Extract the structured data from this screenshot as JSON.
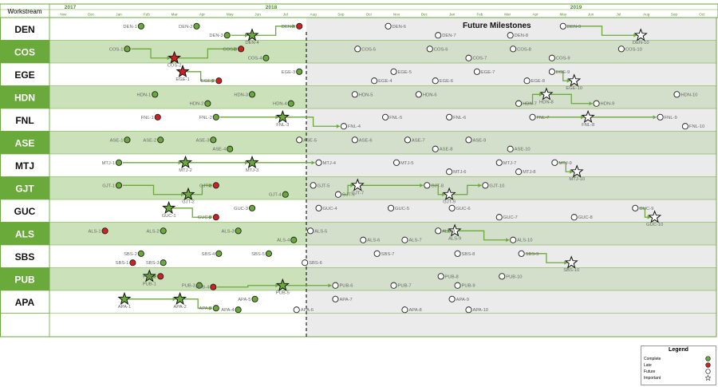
{
  "header": {
    "workstream_label": "Workstream",
    "year_labels": [
      "2017",
      "2018",
      "2019"
    ]
  },
  "months": [
    "Nov",
    "Dec",
    "Jan",
    "Feb",
    "Mar",
    "Apr",
    "May",
    "Jun",
    "Jul",
    "Aug",
    "Sep",
    "Oct",
    "Nov",
    "Dec",
    "Jan",
    "Feb",
    "Mar",
    "Apr",
    "May",
    "Jun",
    "Jul",
    "Aug",
    "Sep",
    "Oct"
  ],
  "future_title": "Future Milestones",
  "workstreams": [
    "DEN",
    "COS",
    "EGE",
    "HDN",
    "FNL",
    "ASE",
    "MTJ",
    "GJT",
    "GUC",
    "ALS",
    "SBS",
    "PUB",
    "APA"
  ],
  "legend": {
    "title": "Legend",
    "items": [
      "Complete",
      "Late",
      "Future",
      "Important"
    ]
  },
  "colors": {
    "accent_green": "#6aaa3a",
    "dark_green": "#4e8a2a",
    "row_header": "#6aaa3a",
    "complete": "#6aaa3a",
    "late": "#cc2222",
    "future": "#ffffff",
    "header_line": "#6aaa3a"
  },
  "milestones": [
    {
      "ws": "DEN",
      "label": "DEN-1",
      "month": 3.3,
      "status": "complete",
      "sub": 0
    },
    {
      "ws": "DEN",
      "label": "DEN-2",
      "month": 5.3,
      "status": "complete",
      "sub": 0
    },
    {
      "ws": "DEN",
      "label": "DEN-3",
      "month": 6.4,
      "status": "complete",
      "sub": 1
    },
    {
      "ws": "DEN",
      "label": "DEN-4",
      "month": 7.3,
      "status": "important_done",
      "sub": 1
    },
    {
      "ws": "DEN",
      "label": "DEN-5",
      "month": 9.0,
      "status": "late",
      "sub": 0
    },
    {
      "ws": "DEN",
      "label": "DEN-6",
      "month": 12.2,
      "status": "future",
      "sub": 0
    },
    {
      "ws": "DEN",
      "label": "DEN-7",
      "month": 14.0,
      "status": "future",
      "sub": 1
    },
    {
      "ws": "DEN",
      "label": "DEN-8",
      "month": 16.6,
      "status": "future",
      "sub": 1
    },
    {
      "ws": "DEN",
      "label": "DEN-9",
      "month": 18.5,
      "status": "future",
      "sub": 0
    },
    {
      "ws": "DEN",
      "label": "DEN-10",
      "month": 21.3,
      "status": "important",
      "sub": 1
    },
    {
      "ws": "COS",
      "label": "COS-1",
      "month": 2.8,
      "status": "complete",
      "sub": 0
    },
    {
      "ws": "COS",
      "label": "COS-2",
      "month": 4.5,
      "status": "important_late",
      "sub": 1
    },
    {
      "ws": "COS",
      "label": "COS-3",
      "month": 6.9,
      "status": "late",
      "sub": 0
    },
    {
      "ws": "COS",
      "label": "COS-4",
      "month": 7.8,
      "status": "complete",
      "sub": 1
    },
    {
      "ws": "COS",
      "label": "COS-5",
      "month": 11.1,
      "status": "future",
      "sub": 0
    },
    {
      "ws": "COS",
      "label": "COS-6",
      "month": 13.7,
      "status": "future",
      "sub": 0
    },
    {
      "ws": "COS",
      "label": "COS-7",
      "month": 15.1,
      "status": "future",
      "sub": 1
    },
    {
      "ws": "COS",
      "label": "COS-8",
      "month": 16.7,
      "status": "future",
      "sub": 0
    },
    {
      "ws": "COS",
      "label": "COS-9",
      "month": 18.1,
      "status": "future",
      "sub": 1
    },
    {
      "ws": "COS",
      "label": "COS-10",
      "month": 20.6,
      "status": "future",
      "sub": 0
    },
    {
      "ws": "EGE",
      "label": "EGE-1",
      "month": 4.8,
      "status": "important_late",
      "sub": 0
    },
    {
      "ws": "EGE",
      "label": "EGE-2",
      "month": 6.1,
      "status": "late",
      "sub": 1
    },
    {
      "ws": "EGE",
      "label": "EGE-3",
      "month": 9.0,
      "status": "complete",
      "sub": 0
    },
    {
      "ws": "EGE",
      "label": "EGE-4",
      "month": 11.7,
      "status": "future",
      "sub": 1
    },
    {
      "ws": "EGE",
      "label": "EGE-5",
      "month": 12.4,
      "status": "future",
      "sub": 0
    },
    {
      "ws": "EGE",
      "label": "EGE-6",
      "month": 13.9,
      "status": "future",
      "sub": 1
    },
    {
      "ws": "EGE",
      "label": "EGE-7",
      "month": 15.4,
      "status": "future",
      "sub": 0
    },
    {
      "ws": "EGE",
      "label": "EGE-8",
      "month": 17.2,
      "status": "future",
      "sub": 1
    },
    {
      "ws": "EGE",
      "label": "EGE-9",
      "month": 18.1,
      "status": "future",
      "sub": 0
    },
    {
      "ws": "EGE",
      "label": "EGE-10",
      "month": 18.9,
      "status": "important",
      "sub": 1
    },
    {
      "ws": "HDN",
      "label": "HDN-1",
      "month": 3.8,
      "status": "complete",
      "sub": 0
    },
    {
      "ws": "HDN",
      "label": "HDN-2",
      "month": 5.7,
      "status": "complete",
      "sub": 1
    },
    {
      "ws": "HDN",
      "label": "HDN-3",
      "month": 7.3,
      "status": "complete",
      "sub": 0
    },
    {
      "ws": "HDN",
      "label": "HDN-4",
      "month": 8.7,
      "status": "complete",
      "sub": 1
    },
    {
      "ws": "HDN",
      "label": "HDN-5",
      "month": 11.0,
      "status": "future",
      "sub": 0
    },
    {
      "ws": "HDN",
      "label": "HDN-6",
      "month": 13.3,
      "status": "future",
      "sub": 0
    },
    {
      "ws": "HDN",
      "label": "HDN-7",
      "month": 16.9,
      "status": "future",
      "sub": 1
    },
    {
      "ws": "HDN",
      "label": "HDN-8",
      "month": 17.9,
      "status": "important",
      "sub": 0
    },
    {
      "ws": "HDN",
      "label": "HDN-9",
      "month": 19.7,
      "status": "future",
      "sub": 1
    },
    {
      "ws": "HDN",
      "label": "HDN-10",
      "month": 22.6,
      "status": "future",
      "sub": 0
    },
    {
      "ws": "FNL",
      "label": "FNL-1",
      "month": 3.9,
      "status": "late",
      "sub": 0
    },
    {
      "ws": "FNL",
      "label": "FNL-2",
      "month": 6.0,
      "status": "complete",
      "sub": 0
    },
    {
      "ws": "FNL",
      "label": "FNL-3",
      "month": 8.4,
      "status": "important_done",
      "sub": 0
    },
    {
      "ws": "FNL",
      "label": "FNL-4",
      "month": 10.6,
      "status": "future",
      "sub": 1
    },
    {
      "ws": "FNL",
      "label": "FNL-5",
      "month": 12.1,
      "status": "future",
      "sub": 0
    },
    {
      "ws": "FNL",
      "label": "FNL-6",
      "month": 14.4,
      "status": "future",
      "sub": 0
    },
    {
      "ws": "FNL",
      "label": "FNL-7",
      "month": 17.4,
      "status": "future",
      "sub": 0
    },
    {
      "ws": "FNL",
      "label": "FNL-8",
      "month": 19.4,
      "status": "important",
      "sub": 0
    },
    {
      "ws": "FNL",
      "label": "FNL-9",
      "month": 22.0,
      "status": "future",
      "sub": 0
    },
    {
      "ws": "FNL",
      "label": "FNL-10",
      "month": 22.9,
      "status": "future",
      "sub": 1
    },
    {
      "ws": "ASE",
      "label": "ASE-1",
      "month": 2.8,
      "status": "complete",
      "sub": 0
    },
    {
      "ws": "ASE",
      "label": "ASE-2",
      "month": 4.0,
      "status": "complete",
      "sub": 0
    },
    {
      "ws": "ASE",
      "label": "ASE-3",
      "month": 5.9,
      "status": "complete",
      "sub": 0
    },
    {
      "ws": "ASE",
      "label": "ASE-4",
      "month": 6.5,
      "status": "complete",
      "sub": 1
    },
    {
      "ws": "ASE",
      "label": "ASE-5",
      "month": 9.0,
      "status": "future",
      "sub": 0
    },
    {
      "ws": "ASE",
      "label": "ASE-6",
      "month": 11.0,
      "status": "future",
      "sub": 0
    },
    {
      "ws": "ASE",
      "label": "ASE-7",
      "month": 12.9,
      "status": "future",
      "sub": 0
    },
    {
      "ws": "ASE",
      "label": "ASE-8",
      "month": 13.9,
      "status": "future",
      "sub": 1
    },
    {
      "ws": "ASE",
      "label": "ASE-9",
      "month": 15.1,
      "status": "future",
      "sub": 0
    },
    {
      "ws": "ASE",
      "label": "ASE-10",
      "month": 16.6,
      "status": "future",
      "sub": 1
    },
    {
      "ws": "MTJ",
      "label": "MTJ-1",
      "month": 2.5,
      "status": "complete",
      "sub": 0
    },
    {
      "ws": "MTJ",
      "label": "MTJ-2",
      "month": 4.9,
      "status": "important_done",
      "sub": 0
    },
    {
      "ws": "MTJ",
      "label": "MTJ-3",
      "month": 7.3,
      "status": "important_done",
      "sub": 0
    },
    {
      "ws": "MTJ",
      "label": "MTJ-4",
      "month": 9.7,
      "status": "future",
      "sub": 0
    },
    {
      "ws": "MTJ",
      "label": "MTJ-5",
      "month": 12.5,
      "status": "future",
      "sub": 0
    },
    {
      "ws": "MTJ",
      "label": "MTJ-6",
      "month": 14.4,
      "status": "future",
      "sub": 1
    },
    {
      "ws": "MTJ",
      "label": "MTJ-7",
      "month": 16.2,
      "status": "future",
      "sub": 0
    },
    {
      "ws": "MTJ",
      "label": "MTJ-8",
      "month": 16.9,
      "status": "future",
      "sub": 1
    },
    {
      "ws": "MTJ",
      "label": "MTJ-9",
      "month": 18.2,
      "status": "future",
      "sub": 0
    },
    {
      "ws": "MTJ",
      "label": "MTJ-10",
      "month": 19.0,
      "status": "important",
      "sub": 1
    },
    {
      "ws": "GJT",
      "label": "GJT-1",
      "month": 2.5,
      "status": "complete",
      "sub": 0
    },
    {
      "ws": "GJT",
      "label": "GJT-2",
      "month": 5.0,
      "status": "important_done",
      "sub": 1
    },
    {
      "ws": "GJT",
      "label": "GJT-3",
      "month": 6.0,
      "status": "late",
      "sub": 0
    },
    {
      "ws": "GJT",
      "label": "GJT-4",
      "month": 8.5,
      "status": "complete",
      "sub": 1
    },
    {
      "ws": "GJT",
      "label": "GJT-5",
      "month": 9.5,
      "status": "future",
      "sub": 0
    },
    {
      "ws": "GJT",
      "label": "GJT-6",
      "month": 10.4,
      "status": "future",
      "sub": 1
    },
    {
      "ws": "GJT",
      "label": "GJT-7",
      "month": 11.1,
      "status": "important",
      "sub": 0
    },
    {
      "ws": "GJT",
      "label": "GJT-8",
      "month": 13.6,
      "status": "future",
      "sub": 0
    },
    {
      "ws": "GJT",
      "label": "GJT-9",
      "month": 14.4,
      "status": "important",
      "sub": 1
    },
    {
      "ws": "GJT",
      "label": "GJT-10",
      "month": 15.7,
      "status": "future",
      "sub": 0
    },
    {
      "ws": "GUC",
      "label": "GUC-1",
      "month": 4.3,
      "status": "important_done",
      "sub": 0
    },
    {
      "ws": "GUC",
      "label": "GUC-2",
      "month": 6.0,
      "status": "late",
      "sub": 1
    },
    {
      "ws": "GUC",
      "label": "GUC-3",
      "month": 7.3,
      "status": "complete",
      "sub": 0
    },
    {
      "ws": "GUC",
      "label": "GUC-4",
      "month": 9.7,
      "status": "future",
      "sub": 0
    },
    {
      "ws": "GUC",
      "label": "GUC-5",
      "month": 12.3,
      "status": "future",
      "sub": 0
    },
    {
      "ws": "GUC",
      "label": "GUC-6",
      "month": 14.5,
      "status": "future",
      "sub": 0
    },
    {
      "ws": "GUC",
      "label": "GUC-7",
      "month": 16.2,
      "status": "future",
      "sub": 1
    },
    {
      "ws": "GUC",
      "label": "GUC-8",
      "month": 18.9,
      "status": "future",
      "sub": 1
    },
    {
      "ws": "GUC",
      "label": "GUC-9",
      "month": 21.1,
      "status": "future",
      "sub": 0
    },
    {
      "ws": "GUC",
      "label": "GUC-10",
      "month": 21.8,
      "status": "important",
      "sub": 1
    },
    {
      "ws": "ALS",
      "label": "ALS-1",
      "month": 2.0,
      "status": "late",
      "sub": 0
    },
    {
      "ws": "ALS",
      "label": "ALS-2",
      "month": 4.1,
      "status": "complete",
      "sub": 0
    },
    {
      "ws": "ALS",
      "label": "ALS-3",
      "month": 6.8,
      "status": "complete",
      "sub": 0
    },
    {
      "ws": "ALS",
      "label": "ALS-4",
      "month": 8.8,
      "status": "complete",
      "sub": 1
    },
    {
      "ws": "ALS",
      "label": "ALS-5",
      "month": 9.4,
      "status": "future",
      "sub": 0
    },
    {
      "ws": "ALS",
      "label": "ALS-6",
      "month": 11.3,
      "status": "future",
      "sub": 1
    },
    {
      "ws": "ALS",
      "label": "ALS-7",
      "month": 12.8,
      "status": "future",
      "sub": 1
    },
    {
      "ws": "ALS",
      "label": "ALS-8",
      "month": 14.0,
      "status": "future",
      "sub": 0
    },
    {
      "ws": "ALS",
      "label": "ALS-9",
      "month": 14.6,
      "status": "important",
      "sub": 0
    },
    {
      "ws": "ALS",
      "label": "ALS-10",
      "month": 16.7,
      "status": "future",
      "sub": 1
    },
    {
      "ws": "SBS",
      "label": "SBS-1",
      "month": 3.0,
      "status": "late",
      "sub": 1
    },
    {
      "ws": "SBS",
      "label": "SBS-2",
      "month": 3.3,
      "status": "complete",
      "sub": 0
    },
    {
      "ws": "SBS",
      "label": "SBS-3",
      "month": 4.1,
      "status": "complete",
      "sub": 1
    },
    {
      "ws": "SBS",
      "label": "SBS-4",
      "month": 6.1,
      "status": "complete",
      "sub": 0
    },
    {
      "ws": "SBS",
      "label": "SBS-5",
      "month": 7.9,
      "status": "complete",
      "sub": 0
    },
    {
      "ws": "SBS",
      "label": "SBS-6",
      "month": 9.2,
      "status": "future",
      "sub": 1
    },
    {
      "ws": "SBS",
      "label": "SBS-7",
      "month": 11.8,
      "status": "future",
      "sub": 0
    },
    {
      "ws": "SBS",
      "label": "SBS-8",
      "month": 14.7,
      "status": "future",
      "sub": 0
    },
    {
      "ws": "SBS",
      "label": "SBS-9",
      "month": 17.0,
      "status": "future",
      "sub": 0
    },
    {
      "ws": "SBS",
      "label": "SBS-10",
      "month": 18.8,
      "status": "important",
      "sub": 1
    },
    {
      "ws": "PUB",
      "label": "PUB-1",
      "month": 3.6,
      "status": "important_done",
      "sub": 0
    },
    {
      "ws": "PUB",
      "label": "PUB-2",
      "month": 4.0,
      "status": "late",
      "sub": 0
    },
    {
      "ws": "PUB",
      "label": "PUB-3",
      "month": 5.4,
      "status": "complete",
      "sub": 1
    },
    {
      "ws": "PUB",
      "label": "PUB-4",
      "month": 5.9,
      "status": "late",
      "sub": 2
    },
    {
      "ws": "PUB",
      "label": "PUB-5",
      "month": 8.4,
      "status": "important_done",
      "sub": 1
    },
    {
      "ws": "PUB",
      "label": "PUB-6",
      "month": 10.3,
      "status": "future",
      "sub": 1
    },
    {
      "ws": "PUB",
      "label": "PUB-7",
      "month": 12.4,
      "status": "future",
      "sub": 1
    },
    {
      "ws": "PUB",
      "label": "PUB-8",
      "month": 14.1,
      "status": "future",
      "sub": 0
    },
    {
      "ws": "PUB",
      "label": "PUB-9",
      "month": 14.7,
      "status": "future",
      "sub": 1
    },
    {
      "ws": "PUB",
      "label": "PUB-10",
      "month": 16.3,
      "status": "future",
      "sub": 0
    },
    {
      "ws": "APA",
      "label": "APA-1",
      "month": 2.7,
      "status": "important_done",
      "sub": 0
    },
    {
      "ws": "APA",
      "label": "APA-2",
      "month": 4.7,
      "status": "important_done",
      "sub": 0
    },
    {
      "ws": "APA",
      "label": "APA-3",
      "month": 6.0,
      "status": "complete",
      "sub": 1
    },
    {
      "ws": "APA",
      "label": "APA-4",
      "month": 6.8,
      "status": "complete",
      "sub": 2
    },
    {
      "ws": "APA",
      "label": "APA-5",
      "month": 7.4,
      "status": "complete",
      "sub": 0
    },
    {
      "ws": "APA",
      "label": "APA-6",
      "month": 8.9,
      "status": "future",
      "sub": 2
    },
    {
      "ws": "APA",
      "label": "APA-7",
      "month": 10.3,
      "status": "future",
      "sub": 0
    },
    {
      "ws": "APA",
      "label": "APA-8",
      "month": 12.8,
      "status": "future",
      "sub": 2
    },
    {
      "ws": "APA",
      "label": "APA-9",
      "month": 14.5,
      "status": "future",
      "sub": 0
    },
    {
      "ws": "APA",
      "label": "APA-10",
      "month": 15.1,
      "status": "future",
      "sub": 2
    }
  ],
  "dependencies": [
    {
      "from": "DEN-3",
      "to": "DEN-4"
    },
    {
      "from": "DEN-4",
      "to": "DEN-5"
    },
    {
      "from": "DEN-9",
      "to": "DEN-10"
    },
    {
      "from": "COS-1",
      "to": "COS-2"
    },
    {
      "from": "COS-2",
      "to": "COS-3"
    },
    {
      "from": "EGE-1",
      "to": "EGE-2"
    },
    {
      "from": "EGE-9",
      "to": "EGE-10"
    },
    {
      "from": "HDN-7",
      "to": "HDN-8"
    },
    {
      "from": "HDN-8",
      "to": "HDN-9"
    },
    {
      "from": "FNL-2",
      "to": "FNL-3"
    },
    {
      "from": "FNL-3",
      "to": "FNL-4"
    },
    {
      "from": "FNL-7",
      "to": "FNL-8"
    },
    {
      "from": "FNL-8",
      "to": "FNL-9"
    },
    {
      "from": "MTJ-1",
      "to": "MTJ-2"
    },
    {
      "from": "MTJ-2",
      "to": "MTJ-3"
    },
    {
      "from": "MTJ-3",
      "to": "MTJ-4"
    },
    {
      "from": "MTJ-9",
      "to": "MTJ-10"
    },
    {
      "from": "GJT-1",
      "to": "GJT-2"
    },
    {
      "from": "GJT-2",
      "to": "GJT-3"
    },
    {
      "from": "GJT-6",
      "to": "GJT-7"
    },
    {
      "from": "GJT-7",
      "to": "GJT-8"
    },
    {
      "from": "GJT-8",
      "to": "GJT-9"
    },
    {
      "from": "GJT-9",
      "to": "GJT-10"
    },
    {
      "from": "GUC-1",
      "to": "GUC-2"
    },
    {
      "from": "GUC-9",
      "to": "GUC-10"
    },
    {
      "from": "ALS-8",
      "to": "ALS-9"
    },
    {
      "from": "ALS-9",
      "to": "ALS-10"
    },
    {
      "from": "SBS-9",
      "to": "SBS-10"
    },
    {
      "from": "PUB-1",
      "to": "PUB-2"
    },
    {
      "from": "PUB-4",
      "to": "PUB-5"
    },
    {
      "from": "PUB-5",
      "to": "PUB-6"
    },
    {
      "from": "APA-1",
      "to": "APA-2"
    },
    {
      "from": "APA-2",
      "to": "APA-3"
    }
  ]
}
